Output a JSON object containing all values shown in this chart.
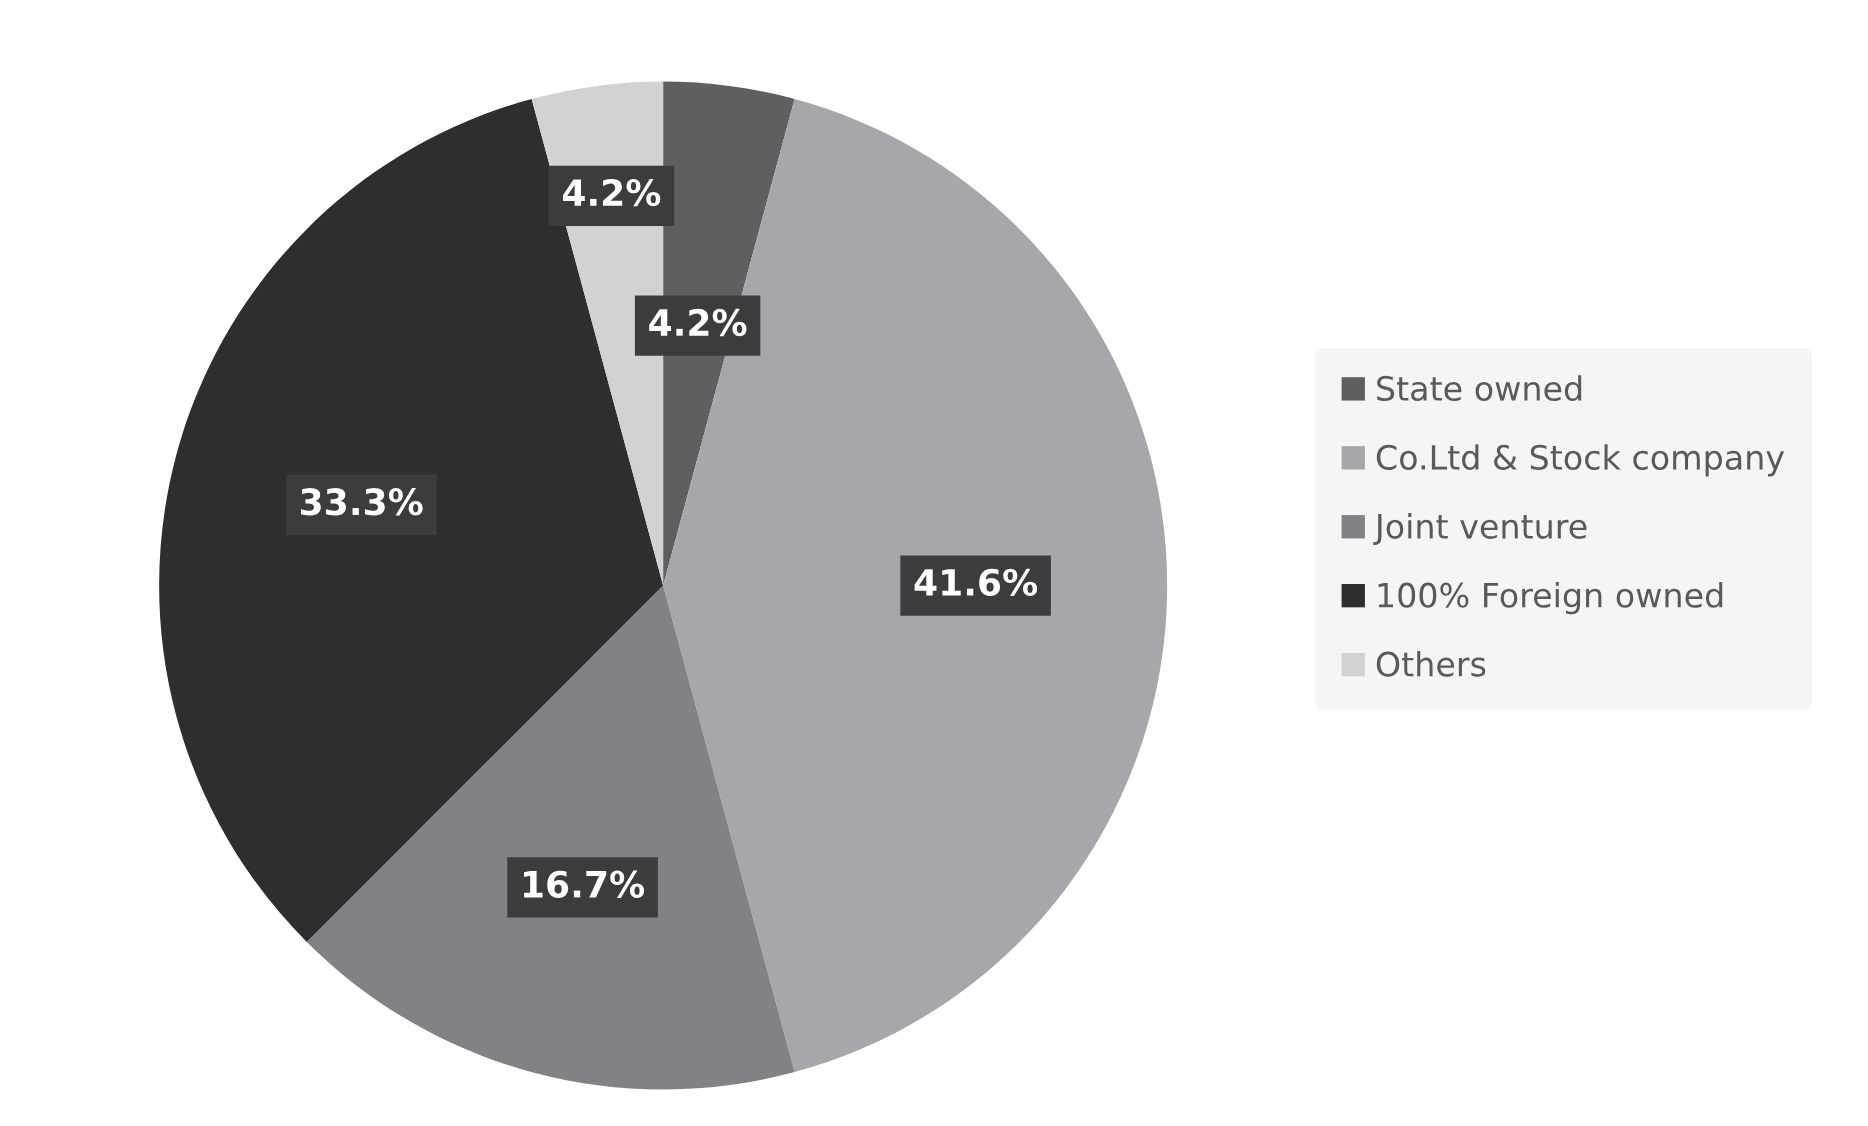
{
  "chart_data": {
    "type": "pie",
    "categories": [
      "State owned",
      "Co.Ltd & Stock company",
      "Joint venture",
      "100% Foreign owned",
      "Others"
    ],
    "values": [
      4.2,
      41.6,
      16.7,
      33.3,
      4.2
    ],
    "colors": [
      "#5f5f62",
      "#a6a7aa",
      "#818285",
      "#2f2d2f",
      "#d1d2d4"
    ],
    "value_labels": [
      "4.2%",
      "41.6%",
      "16.7%",
      "33.3%",
      "4.2%"
    ],
    "legend": "right"
  }
}
